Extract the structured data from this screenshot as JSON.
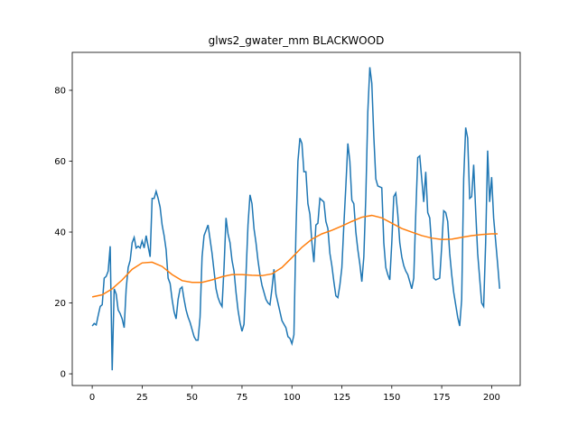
{
  "chart_data": {
    "type": "line",
    "title": "glws2_gwater_mm BLACKWOOD",
    "xlim": [
      -10,
      214.3
    ],
    "ylim": [
      -3.3,
      90.7
    ],
    "xticks": [
      0,
      25,
      50,
      75,
      100,
      125,
      150,
      175,
      200
    ],
    "yticks": [
      0,
      20,
      40,
      60,
      80
    ],
    "series": [
      {
        "color": "#1f77b4",
        "x": [
          0,
          1,
          2,
          3,
          4,
          5,
          6,
          7,
          8,
          9,
          10,
          11,
          12,
          13,
          14,
          15,
          16,
          17,
          18,
          19,
          20,
          21,
          22,
          23,
          24,
          25,
          26,
          27,
          29,
          30,
          31,
          32,
          33,
          34,
          35,
          36,
          37,
          38,
          39,
          40,
          41,
          42,
          43,
          44,
          45,
          46,
          47,
          48,
          49,
          50,
          51,
          52,
          53,
          54,
          55,
          56,
          58,
          59,
          60,
          61,
          62,
          63,
          64,
          65,
          66,
          67,
          68,
          69,
          70,
          71,
          72,
          73,
          74,
          75,
          76,
          77,
          78,
          79,
          80,
          81,
          82,
          83,
          84,
          85,
          87,
          88,
          89,
          90,
          91,
          92,
          93,
          94,
          95,
          96,
          97,
          98,
          99,
          100,
          101,
          102,
          103,
          104,
          105,
          106,
          107,
          108,
          109,
          110,
          111,
          112,
          113,
          114,
          116,
          117,
          118,
          119,
          120,
          121,
          122,
          123,
          124,
          125,
          126,
          127,
          128,
          129,
          130,
          131,
          132,
          133,
          134,
          135,
          136,
          137,
          138,
          139,
          140,
          141,
          142,
          143,
          145,
          146,
          147,
          148,
          149,
          150,
          151,
          152,
          153,
          154,
          155,
          156,
          157,
          158,
          159,
          160,
          161,
          162,
          163,
          164,
          165,
          166,
          167,
          168,
          169,
          170,
          171,
          172,
          174,
          175,
          176,
          177,
          178,
          179,
          180,
          181,
          182,
          183,
          184,
          185,
          186,
          187,
          188,
          189,
          190,
          191,
          192,
          193,
          194,
          195,
          196,
          197,
          198,
          199,
          200,
          201,
          203,
          204
        ],
        "values": [
          13.5,
          14.2,
          13.8,
          16.5,
          19,
          19.5,
          27,
          27.5,
          29,
          36,
          1,
          24,
          22.5,
          18,
          17,
          15.5,
          13,
          24,
          30,
          32,
          37,
          38.5,
          35.5,
          36,
          35.5,
          37.5,
          35.5,
          39,
          33,
          49.5,
          49.5,
          51.5,
          49.5,
          47,
          42,
          39,
          35,
          27,
          25.5,
          21,
          17.5,
          15.5,
          21,
          24,
          24.5,
          21,
          18,
          16,
          14.5,
          12.5,
          10.5,
          9.5,
          9.5,
          16,
          33,
          39,
          42,
          38,
          34,
          29,
          24,
          21.5,
          20,
          19,
          30,
          44,
          39.5,
          37,
          32,
          29,
          23,
          18,
          14.5,
          12,
          14,
          28,
          42,
          50.5,
          48,
          41,
          37,
          32,
          28,
          25,
          21,
          20,
          19.5,
          24,
          29.5,
          22.5,
          20,
          17.5,
          15,
          14,
          13,
          10.5,
          10,
          8.5,
          11,
          40,
          60,
          66.5,
          65,
          57,
          57,
          48,
          45,
          37,
          31.5,
          42,
          42.5,
          49.5,
          48.5,
          43,
          41,
          34,
          30.5,
          26,
          22,
          21.5,
          25,
          30,
          42,
          53,
          65,
          60,
          49,
          48,
          40,
          35,
          31,
          26,
          33,
          50,
          74,
          86.5,
          82,
          67,
          55,
          53,
          52.5,
          37,
          30,
          28,
          26.5,
          37,
          50,
          51,
          45,
          37,
          33,
          30.5,
          29,
          28,
          26,
          24,
          27,
          45,
          61,
          61.5,
          55,
          48.5,
          57,
          45.5,
          44,
          36,
          27,
          26.5,
          27,
          36,
          46,
          45.5,
          43,
          34,
          28,
          23,
          19.5,
          16,
          13.5,
          21,
          55,
          69.5,
          66.5,
          49.5,
          50,
          59,
          46,
          34,
          27,
          20,
          19,
          37,
          63,
          48.5,
          55.5,
          44,
          31,
          24
        ]
      },
      {
        "color": "#ff7f0e",
        "x": [
          0,
          5,
          10,
          15,
          20,
          25,
          30,
          35,
          40,
          45,
          50,
          55,
          60,
          65,
          70,
          75,
          80,
          85,
          90,
          95,
          100,
          105,
          110,
          115,
          120,
          125,
          130,
          135,
          140,
          145,
          150,
          155,
          160,
          165,
          170,
          175,
          180,
          185,
          190,
          195,
          200,
          203
        ],
        "values": [
          21.7,
          22.3,
          24,
          26.5,
          29.5,
          31.3,
          31.5,
          30.3,
          28,
          26.3,
          25.8,
          25.8,
          26.5,
          27.4,
          28,
          28,
          27.8,
          27.7,
          28.2,
          30,
          32.8,
          35.7,
          38,
          39.5,
          40.5,
          41.7,
          43,
          44.2,
          44.7,
          44,
          42.5,
          41,
          40,
          39,
          38.3,
          37.9,
          38,
          38.5,
          39,
          39.3,
          39.5,
          39.5
        ]
      }
    ]
  }
}
